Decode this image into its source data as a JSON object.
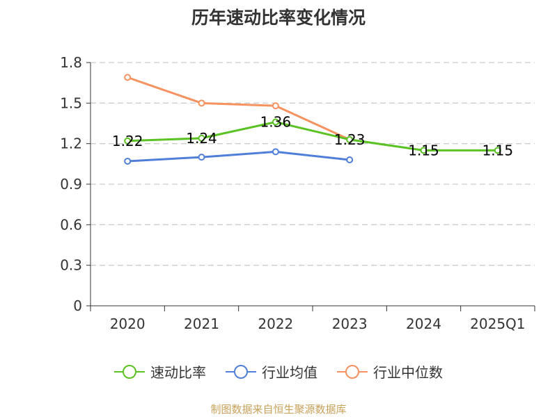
{
  "chart_data": {
    "type": "line",
    "title": "历年速动比率变化情况",
    "categories": [
      "2020",
      "2021",
      "2022",
      "2023",
      "2024",
      "2025Q1"
    ],
    "yticks": [
      "0",
      "0.3",
      "0.6",
      "0.9",
      "1.2",
      "1.5",
      "1.8"
    ],
    "ylim": [
      0,
      1.8
    ],
    "grid": true,
    "legend_position": "bottom",
    "series": [
      {
        "name": "速动比率",
        "color": "#5bc223",
        "values": [
          1.22,
          1.24,
          1.36,
          1.23,
          1.15,
          1.15
        ],
        "labels": [
          "1.22",
          "1.24",
          "1.36",
          "1.23",
          "1.15",
          "1.15"
        ]
      },
      {
        "name": "行业均值",
        "color": "#4f7fd9",
        "values": [
          1.07,
          1.1,
          1.14,
          1.08,
          null,
          null
        ]
      },
      {
        "name": "行业中位数",
        "color": "#f5925f",
        "values": [
          1.69,
          1.5,
          1.48,
          1.23,
          null,
          null
        ]
      }
    ]
  },
  "footer": "制图数据来自恒生聚源数据库"
}
